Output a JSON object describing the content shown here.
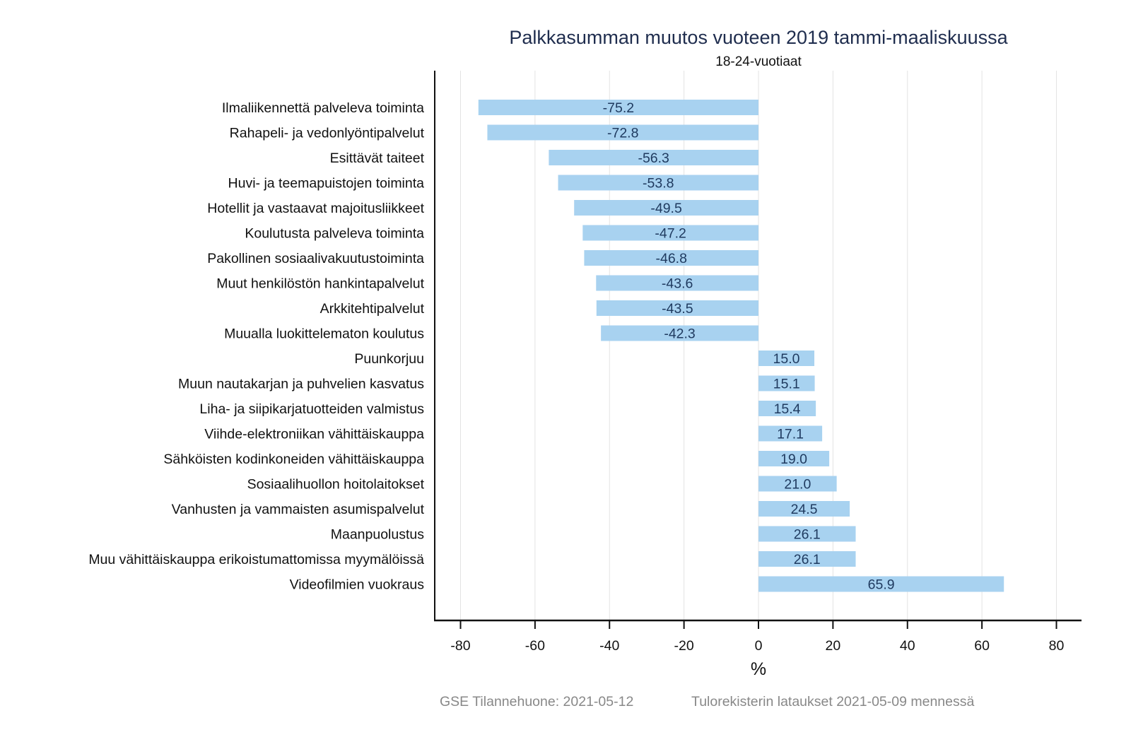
{
  "chart_data": {
    "type": "bar",
    "orientation": "horizontal",
    "title": "Palkkasumman muutos vuoteen 2019 tammi-maaliskuussa",
    "subtitle": "18-24-vuotiaat",
    "xlabel": "%",
    "ylabel": "",
    "xlim": [
      -87,
      86
    ],
    "xticks": [
      -80,
      -60,
      -40,
      -20,
      0,
      20,
      40,
      60,
      80
    ],
    "xtick_labels": [
      "-80",
      "-60",
      "-40",
      "-20",
      "0",
      "20",
      "40",
      "60",
      "80"
    ],
    "grid": true,
    "bar_color": "#a8d2f0",
    "categories": [
      "Ilmaliikennettä palveleva toiminta",
      "Rahapeli- ja vedonlyöntipalvelut",
      "Esittävät taiteet",
      "Huvi- ja teemapuistojen toiminta",
      "Hotellit ja vastaavat majoitusliikkeet",
      "Koulutusta palveleva toiminta",
      "Pakollinen sosiaalivakuutustoiminta",
      "Muut henkilöstön hankintapalvelut",
      "Arkkitehtipalvelut",
      "Muualla luokittelematon koulutus",
      "Puunkorjuu",
      "Muun nautakarjan ja puhvelien kasvatus",
      "Liha- ja siipikarjatuotteiden valmistus",
      "Viihde-elektroniikan vähittäiskauppa",
      "Sähköisten kodinkoneiden vähittäiskauppa",
      "Sosiaalihuollon hoitolaitokset",
      "Vanhusten ja vammaisten asumispalvelut",
      "Maanpuolustus",
      "Muu vähittäiskauppa erikoistumattomissa myymälöissä",
      "Videofilmien vuokraus"
    ],
    "values": [
      -75.2,
      -72.8,
      -56.3,
      -53.8,
      -49.5,
      -47.2,
      -46.8,
      -43.6,
      -43.5,
      -42.3,
      15.0,
      15.1,
      15.4,
      17.1,
      19.0,
      21.0,
      24.5,
      26.1,
      26.1,
      65.9
    ],
    "value_labels": [
      "-75.2",
      "-72.8",
      "-56.3",
      "-53.8",
      "-49.5",
      "-47.2",
      "-46.8",
      "-43.6",
      "-43.5",
      "-42.3",
      "15.0",
      "15.1",
      "15.4",
      "17.1",
      "19.0",
      "21.0",
      "24.5",
      "26.1",
      "26.1",
      "65.9"
    ]
  },
  "footer": {
    "source": "GSE Tilannehuone: 2021-05-12",
    "note": "Tulorekisterin lataukset 2021-05-09 mennessä"
  }
}
